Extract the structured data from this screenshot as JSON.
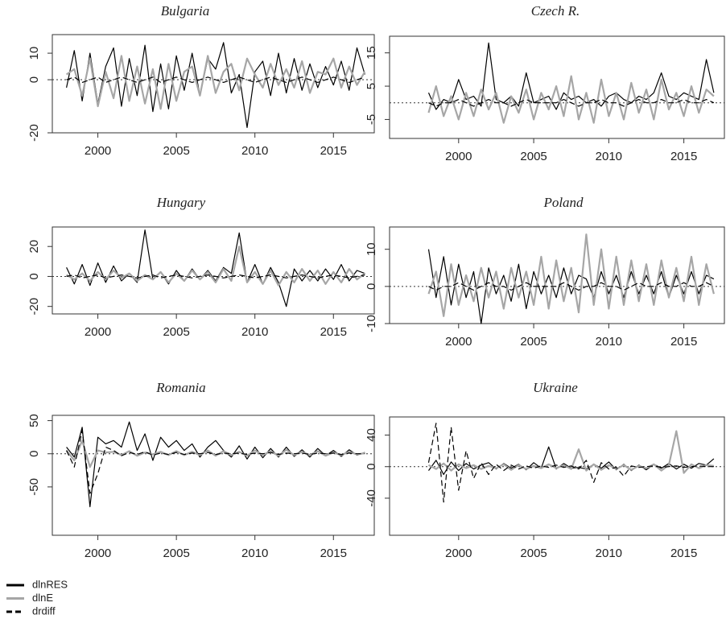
{
  "chart_data": [
    {
      "type": "line",
      "title": "Bulgaria",
      "x": [
        1998,
        1998.5,
        1999,
        1999.5,
        2000,
        2000.5,
        2001,
        2001.5,
        2002,
        2002.5,
        2003,
        2003.5,
        2004,
        2004.5,
        2005,
        2005.5,
        2006,
        2006.5,
        2007,
        2007.5,
        2008,
        2008.5,
        2009,
        2009.5,
        2010,
        2010.5,
        2011,
        2011.5,
        2012,
        2012.5,
        2013,
        2013.5,
        2014,
        2014.5,
        2015,
        2015.5,
        2016,
        2016.5,
        2017
      ],
      "xlim": [
        1997.1,
        2017.6
      ],
      "xticks": [
        2000,
        2005,
        2010,
        2015
      ],
      "ylim": [
        -20,
        17
      ],
      "yticks": [
        -20,
        0,
        10
      ],
      "reference_y": 0,
      "series": [
        {
          "name": "dlnRES",
          "color": "#000000",
          "linestyle": "solid",
          "values": [
            -3,
            11,
            -8,
            10,
            -9,
            5,
            12,
            -10,
            8,
            -6,
            13,
            -12,
            6,
            -11,
            9,
            -4,
            10,
            -6,
            8,
            4,
            14,
            -5,
            2,
            -18,
            3,
            7,
            -6,
            10,
            -5,
            8,
            -4,
            6,
            -3,
            5,
            -2,
            7,
            -4,
            12,
            2
          ]
        },
        {
          "name": "dlnE",
          "color": "#a6a6a6",
          "linestyle": "solid",
          "values": [
            2,
            4,
            -6,
            8,
            -10,
            3,
            -7,
            9,
            -8,
            5,
            -9,
            4,
            -11,
            6,
            -8,
            3,
            5,
            -6,
            9,
            -5,
            3,
            6,
            -4,
            8,
            2,
            -3,
            6,
            -2,
            4,
            -3,
            7,
            -5,
            3,
            2,
            8,
            -3,
            5,
            -2,
            3
          ]
        },
        {
          "name": "drdiff",
          "color": "#000000",
          "linestyle": "dashed",
          "values": [
            0,
            1,
            -1,
            0,
            1,
            -1,
            0,
            1,
            0,
            -1,
            0,
            1,
            -1,
            0,
            1,
            0,
            -1,
            0,
            1,
            0,
            -1,
            0,
            1,
            0,
            -1,
            0,
            1,
            0,
            -1,
            0,
            1,
            0,
            -1,
            0,
            1,
            0,
            -1,
            0,
            1
          ]
        }
      ]
    },
    {
      "type": "line",
      "title": "Czech R.",
      "x": [
        1998,
        1998.5,
        1999,
        1999.5,
        2000,
        2000.5,
        2001,
        2001.5,
        2002,
        2002.5,
        2003,
        2003.5,
        2004,
        2004.5,
        2005,
        2005.5,
        2006,
        2006.5,
        2007,
        2007.5,
        2008,
        2008.5,
        2009,
        2009.5,
        2010,
        2010.5,
        2011,
        2011.5,
        2012,
        2012.5,
        2013,
        2013.5,
        2014,
        2014.5,
        2015,
        2015.5,
        2016,
        2016.5,
        2017
      ],
      "xlim": [
        1995.4,
        2017.7
      ],
      "xticks": [
        2000,
        2005,
        2010,
        2015
      ],
      "ylim": [
        -10.7,
        20
      ],
      "yticks": [
        -5,
        5,
        15
      ],
      "reference_y": 0,
      "series": [
        {
          "name": "dlnRES",
          "color": "#000000",
          "linestyle": "solid",
          "values": [
            3,
            -2,
            1,
            0,
            7,
            1,
            2,
            -1,
            18,
            1,
            0,
            2,
            -1,
            9,
            0,
            1,
            2,
            -2,
            3,
            1,
            2,
            0,
            1,
            -1,
            2,
            3,
            1,
            0,
            2,
            1,
            3,
            9,
            2,
            1,
            3,
            2,
            1,
            13,
            3
          ]
        },
        {
          "name": "dlnE",
          "color": "#a6a6a6",
          "linestyle": "solid",
          "values": [
            -3,
            5,
            -4,
            2,
            -5,
            3,
            -4,
            4,
            -2,
            3,
            -6,
            2,
            -3,
            4,
            -5,
            3,
            -2,
            5,
            -4,
            8,
            -5,
            3,
            -6,
            7,
            -4,
            3,
            -5,
            6,
            -3,
            4,
            -5,
            7,
            -2,
            3,
            -4,
            5,
            -3,
            4,
            2
          ]
        },
        {
          "name": "drdiff",
          "color": "#000000",
          "linestyle": "dashed",
          "values": [
            0,
            -1,
            0,
            0,
            1,
            0,
            -1,
            0,
            1,
            0,
            0,
            -1,
            0,
            1,
            0,
            0,
            0,
            0,
            1,
            0,
            -1,
            0,
            0,
            1,
            0,
            0,
            -1,
            0,
            1,
            0,
            0,
            1,
            0,
            0,
            1,
            0,
            0,
            1,
            0
          ]
        }
      ]
    },
    {
      "type": "line",
      "title": "Hungary",
      "x": [
        1998,
        1998.5,
        1999,
        1999.5,
        2000,
        2000.5,
        2001,
        2001.5,
        2002,
        2002.5,
        2003,
        2003.5,
        2004,
        2004.5,
        2005,
        2005.5,
        2006,
        2006.5,
        2007,
        2007.5,
        2008,
        2008.5,
        2009,
        2009.5,
        2010,
        2010.5,
        2011,
        2011.5,
        2012,
        2012.5,
        2013,
        2013.5,
        2014,
        2014.5,
        2015,
        2015.5,
        2016,
        2016.5,
        2017
      ],
      "xlim": [
        1997.1,
        2017.6
      ],
      "xticks": [
        2000,
        2005,
        2010,
        2015
      ],
      "ylim": [
        -25,
        33
      ],
      "yticks": [
        -20,
        0,
        20
      ],
      "reference_y": 0,
      "series": [
        {
          "name": "dlnRES",
          "color": "#000000",
          "linestyle": "solid",
          "values": [
            6,
            -5,
            8,
            -6,
            9,
            -4,
            7,
            -3,
            2,
            -4,
            31,
            -2,
            3,
            -5,
            4,
            -3,
            5,
            -2,
            4,
            -3,
            6,
            2,
            29,
            -4,
            8,
            -5,
            6,
            -4,
            -20,
            5,
            -3,
            4,
            -3,
            5,
            -2,
            8,
            -3,
            4,
            2
          ]
        },
        {
          "name": "dlnE",
          "color": "#a6a6a6",
          "linestyle": "solid",
          "values": [
            1,
            -2,
            2,
            -3,
            3,
            -2,
            4,
            -1,
            2,
            -3,
            1,
            -2,
            3,
            -4,
            2,
            -3,
            4,
            -2,
            3,
            -4,
            5,
            -3,
            20,
            -4,
            3,
            -5,
            4,
            -6,
            3,
            -4,
            5,
            -3,
            4,
            -5,
            3,
            -4,
            5,
            -2,
            2
          ]
        },
        {
          "name": "drdiff",
          "color": "#000000",
          "linestyle": "dashed",
          "values": [
            0,
            1,
            -1,
            0,
            1,
            -1,
            0,
            1,
            0,
            -1,
            0,
            1,
            -1,
            0,
            1,
            0,
            -1,
            0,
            1,
            0,
            -1,
            0,
            1,
            0,
            -1,
            0,
            1,
            0,
            -1,
            0,
            1,
            0,
            -1,
            0,
            1,
            0,
            -1,
            0,
            1
          ]
        }
      ]
    },
    {
      "type": "line",
      "title": "Poland",
      "x": [
        1998,
        1998.5,
        1999,
        1999.5,
        2000,
        2000.5,
        2001,
        2001.5,
        2002,
        2002.5,
        2003,
        2003.5,
        2004,
        2004.5,
        2005,
        2005.5,
        2006,
        2006.5,
        2007,
        2007.5,
        2008,
        2008.5,
        2009,
        2009.5,
        2010,
        2010.5,
        2011,
        2011.5,
        2012,
        2012.5,
        2013,
        2013.5,
        2014,
        2014.5,
        2015,
        2015.5,
        2016,
        2016.5,
        2017
      ],
      "xlim": [
        1995.4,
        2017.7
      ],
      "xticks": [
        2000,
        2005,
        2010,
        2015
      ],
      "ylim": [
        -10,
        16
      ],
      "yticks": [
        -10,
        0,
        10
      ],
      "reference_y": 0,
      "series": [
        {
          "name": "dlnRES",
          "color": "#000000",
          "linestyle": "solid",
          "values": [
            10,
            -3,
            8,
            -5,
            6,
            -3,
            4,
            -10,
            5,
            -2,
            3,
            -4,
            6,
            -6,
            4,
            -2,
            3,
            -3,
            5,
            -2,
            3,
            2,
            -3,
            4,
            -2,
            3,
            -3,
            4,
            -2,
            3,
            -2,
            4,
            -3,
            3,
            -2,
            4,
            -2,
            3,
            2
          ]
        },
        {
          "name": "dlnE",
          "color": "#a6a6a6",
          "linestyle": "solid",
          "values": [
            -2,
            4,
            -8,
            6,
            -5,
            3,
            -4,
            5,
            -3,
            4,
            -6,
            5,
            -3,
            4,
            -5,
            8,
            -6,
            7,
            -4,
            5,
            -7,
            14,
            -5,
            10,
            -6,
            8,
            -5,
            7,
            -4,
            6,
            -5,
            7,
            -3,
            5,
            -4,
            8,
            -5,
            6,
            -2
          ]
        },
        {
          "name": "drdiff",
          "color": "#000000",
          "linestyle": "dashed",
          "values": [
            0,
            -1,
            0,
            0,
            1,
            0,
            -1,
            0,
            1,
            0,
            0,
            -1,
            0,
            1,
            0,
            0,
            0,
            0,
            1,
            0,
            -1,
            0,
            0,
            1,
            0,
            0,
            -1,
            0,
            1,
            0,
            0,
            1,
            0,
            0,
            1,
            0,
            0,
            1,
            0
          ]
        }
      ]
    },
    {
      "type": "line",
      "title": "Romania",
      "x": [
        1998,
        1998.5,
        1999,
        1999.5,
        2000,
        2000.5,
        2001,
        2001.5,
        2002,
        2002.5,
        2003,
        2003.5,
        2004,
        2004.5,
        2005,
        2005.5,
        2006,
        2006.5,
        2007,
        2007.5,
        2008,
        2008.5,
        2009,
        2009.5,
        2010,
        2010.5,
        2011,
        2011.5,
        2012,
        2012.5,
        2013,
        2013.5,
        2014,
        2014.5,
        2015,
        2015.5,
        2016,
        2016.5,
        2017
      ],
      "xlim": [
        1997.1,
        2017.6
      ],
      "xticks": [
        2000,
        2005,
        2010,
        2015
      ],
      "ylim": [
        -123,
        58
      ],
      "yticks": [
        -50,
        0,
        50
      ],
      "reference_y": 0,
      "series": [
        {
          "name": "dlnRES",
          "color": "#000000",
          "linestyle": "solid",
          "values": [
            10,
            -5,
            40,
            -80,
            25,
            15,
            20,
            10,
            48,
            5,
            30,
            -10,
            25,
            10,
            20,
            5,
            15,
            -5,
            10,
            20,
            5,
            -5,
            12,
            -8,
            10,
            -6,
            8,
            -5,
            10,
            -4,
            6,
            -5,
            8,
            -3,
            5,
            -4,
            6,
            -2,
            2
          ]
        },
        {
          "name": "dlnE",
          "color": "#a6a6a6",
          "linestyle": "solid",
          "values": [
            5,
            -10,
            20,
            -20,
            5,
            2,
            3,
            -2,
            4,
            -3,
            2,
            -1,
            3,
            -2,
            4,
            -2,
            3,
            -2,
            5,
            -3,
            4,
            -2,
            3,
            -3,
            5,
            -2,
            4,
            -3,
            6,
            -2,
            3,
            -2,
            4,
            -3,
            2,
            -2,
            3,
            -1,
            1
          ]
        },
        {
          "name": "drdiff",
          "color": "#000000",
          "linestyle": "dashed",
          "values": [
            5,
            -20,
            35,
            -60,
            -30,
            10,
            5,
            -3,
            2,
            -1,
            3,
            -2,
            1,
            -1,
            2,
            -1,
            1,
            0,
            2,
            -1,
            1,
            0,
            1,
            -1,
            1,
            0,
            2,
            -1,
            1,
            0,
            1,
            -1,
            1,
            0,
            1,
            -1,
            1,
            0,
            0
          ]
        }
      ]
    },
    {
      "type": "line",
      "title": "Ukraine",
      "x": [
        1998,
        1998.5,
        1999,
        1999.5,
        2000,
        2000.5,
        2001,
        2001.5,
        2002,
        2002.5,
        2003,
        2003.5,
        2004,
        2004.5,
        2005,
        2005.5,
        2006,
        2006.5,
        2007,
        2007.5,
        2008,
        2008.5,
        2009,
        2009.5,
        2010,
        2010.5,
        2011,
        2011.5,
        2012,
        2012.5,
        2013,
        2013.5,
        2014,
        2014.5,
        2015,
        2015.5,
        2016,
        2016.5,
        2017
      ],
      "xlim": [
        1995.4,
        2017.7
      ],
      "xticks": [
        2000,
        2005,
        2010,
        2015
      ],
      "ylim": [
        -87,
        63
      ],
      "yticks": [
        -40,
        0,
        40
      ],
      "reference_y": 0,
      "series": [
        {
          "name": "dlnRES",
          "color": "#000000",
          "linestyle": "solid",
          "values": [
            -5,
            8,
            -10,
            6,
            -5,
            4,
            -3,
            2,
            5,
            -3,
            4,
            -2,
            3,
            -4,
            5,
            -2,
            25,
            -3,
            4,
            -2,
            -1,
            -3,
            3,
            -2,
            6,
            -4,
            3,
            -5,
            2,
            -4,
            3,
            -2,
            4,
            -3,
            3,
            -2,
            4,
            2,
            10
          ]
        },
        {
          "name": "dlnE",
          "color": "#a6a6a6",
          "linestyle": "solid",
          "values": [
            2,
            -3,
            4,
            -5,
            3,
            -2,
            2,
            -3,
            1,
            -2,
            3,
            -4,
            2,
            -3,
            1,
            -2,
            3,
            -2,
            2,
            -3,
            22,
            -5,
            3,
            -4,
            2,
            -3,
            2,
            -4,
            1,
            -2,
            3,
            -5,
            2,
            45,
            -8,
            3,
            -2,
            2,
            1
          ]
        },
        {
          "name": "drdiff",
          "color": "#000000",
          "linestyle": "dashed",
          "values": [
            5,
            55,
            -45,
            50,
            -30,
            20,
            -15,
            5,
            -10,
            3,
            -5,
            2,
            -3,
            1,
            -2,
            1,
            -1,
            2,
            -1,
            1,
            -3,
            8,
            -20,
            5,
            -3,
            -1,
            -12,
            1,
            -1,
            0,
            1,
            -1,
            0,
            1,
            -1,
            0,
            1,
            0,
            0
          ]
        }
      ]
    }
  ]
}
